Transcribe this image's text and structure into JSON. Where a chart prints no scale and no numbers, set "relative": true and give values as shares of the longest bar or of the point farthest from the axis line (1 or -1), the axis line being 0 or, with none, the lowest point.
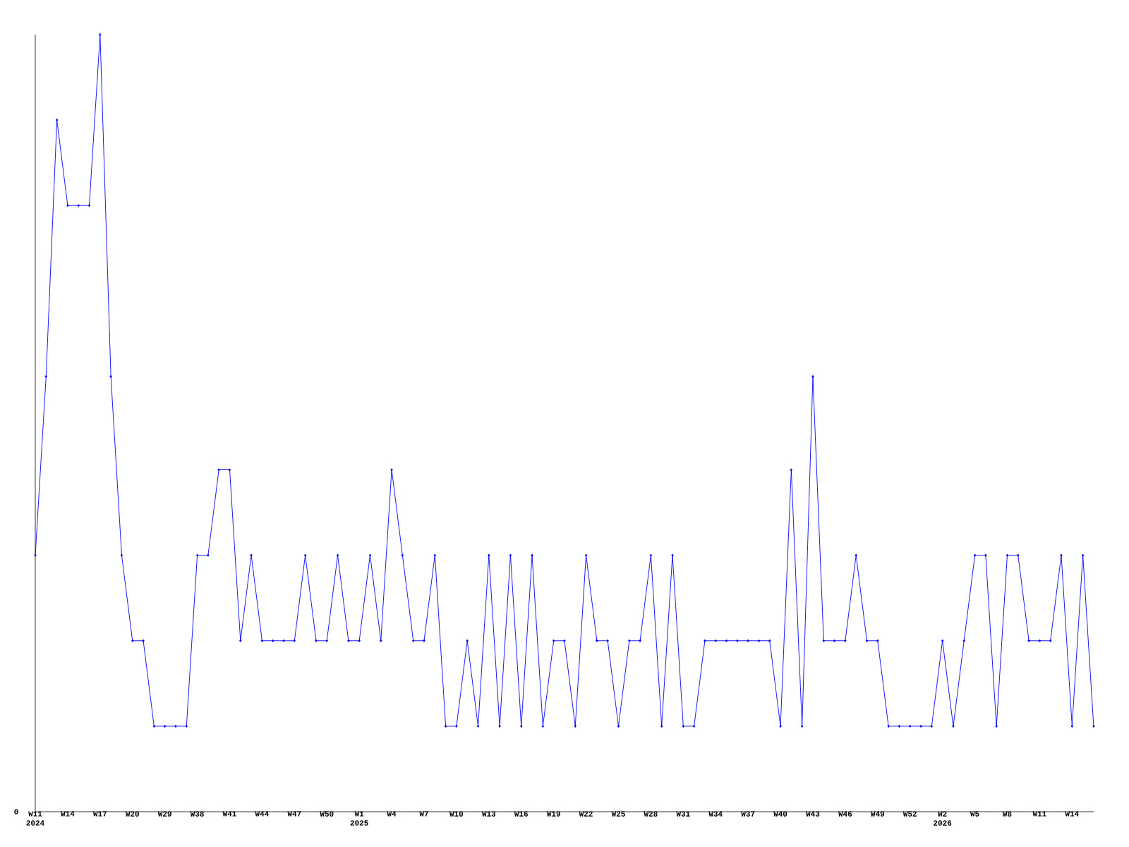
{
  "chart_data": {
    "type": "line",
    "relative": true,
    "color": "#0000ff",
    "marker": "diamond",
    "line_style": "solid",
    "categories": [
      "W11 2024",
      null,
      null,
      "W14",
      null,
      null,
      "W17",
      null,
      null,
      "W20",
      null,
      null,
      "W29",
      null,
      null,
      "W38",
      null,
      null,
      "W41",
      null,
      null,
      "W44",
      null,
      null,
      "W47",
      null,
      null,
      "W50",
      null,
      null,
      "W1 2025",
      null,
      null,
      "W4",
      null,
      null,
      "W7",
      null,
      null,
      "W10",
      null,
      null,
      "W13",
      null,
      null,
      "W16",
      null,
      null,
      "W19",
      null,
      null,
      "W22",
      null,
      null,
      "W25",
      null,
      null,
      "W28",
      null,
      null,
      "W31",
      null,
      null,
      "W34",
      null,
      null,
      "W37",
      null,
      null,
      "W40",
      null,
      null,
      "W43",
      null,
      null,
      "W46",
      null,
      null,
      "W49",
      null,
      null,
      "W52",
      null,
      null,
      "W2 2026",
      null,
      null,
      "W5",
      null,
      null,
      "W8",
      null,
      null,
      "W11",
      null,
      null,
      "W14",
      null,
      null
    ],
    "values": [
      0.33,
      0.56,
      0.89,
      0.78,
      0.78,
      0.78,
      1,
      0.56,
      0.33,
      0.22,
      0.22,
      0.11,
      0.11,
      0.11,
      0.11,
      0.33,
      0.33,
      0.44,
      0.44,
      0.22,
      0.33,
      0.22,
      0.22,
      0.22,
      0.22,
      0.33,
      0.22,
      0.22,
      0.33,
      0.22,
      0.22,
      0.33,
      0.22,
      0.44,
      0.33,
      0.22,
      0.22,
      0.33,
      0.11,
      0.11,
      0.22,
      0.11,
      0.33,
      0.11,
      0.33,
      0.11,
      0.33,
      0.11,
      0.22,
      0.22,
      0.11,
      0.33,
      0.22,
      0.22,
      0.11,
      0.22,
      0.22,
      0.33,
      0.11,
      0.33,
      0.11,
      0.11,
      0.22,
      0.22,
      0.22,
      0.22,
      0.22,
      0.22,
      0.22,
      0.11,
      0.44,
      0.11,
      0.56,
      0.22,
      0.22,
      0.22,
      0.33,
      0.22,
      0.22,
      0.11,
      0.11,
      0.11,
      0.11,
      0.11,
      0.22,
      0.11,
      0.22,
      0.33,
      0.33,
      0.11,
      0.33,
      0.33,
      0.22,
      0.22,
      0.22,
      0.33,
      0.11,
      0.33,
      0.11
    ],
    "annotations": [
      "0"
    ]
  }
}
